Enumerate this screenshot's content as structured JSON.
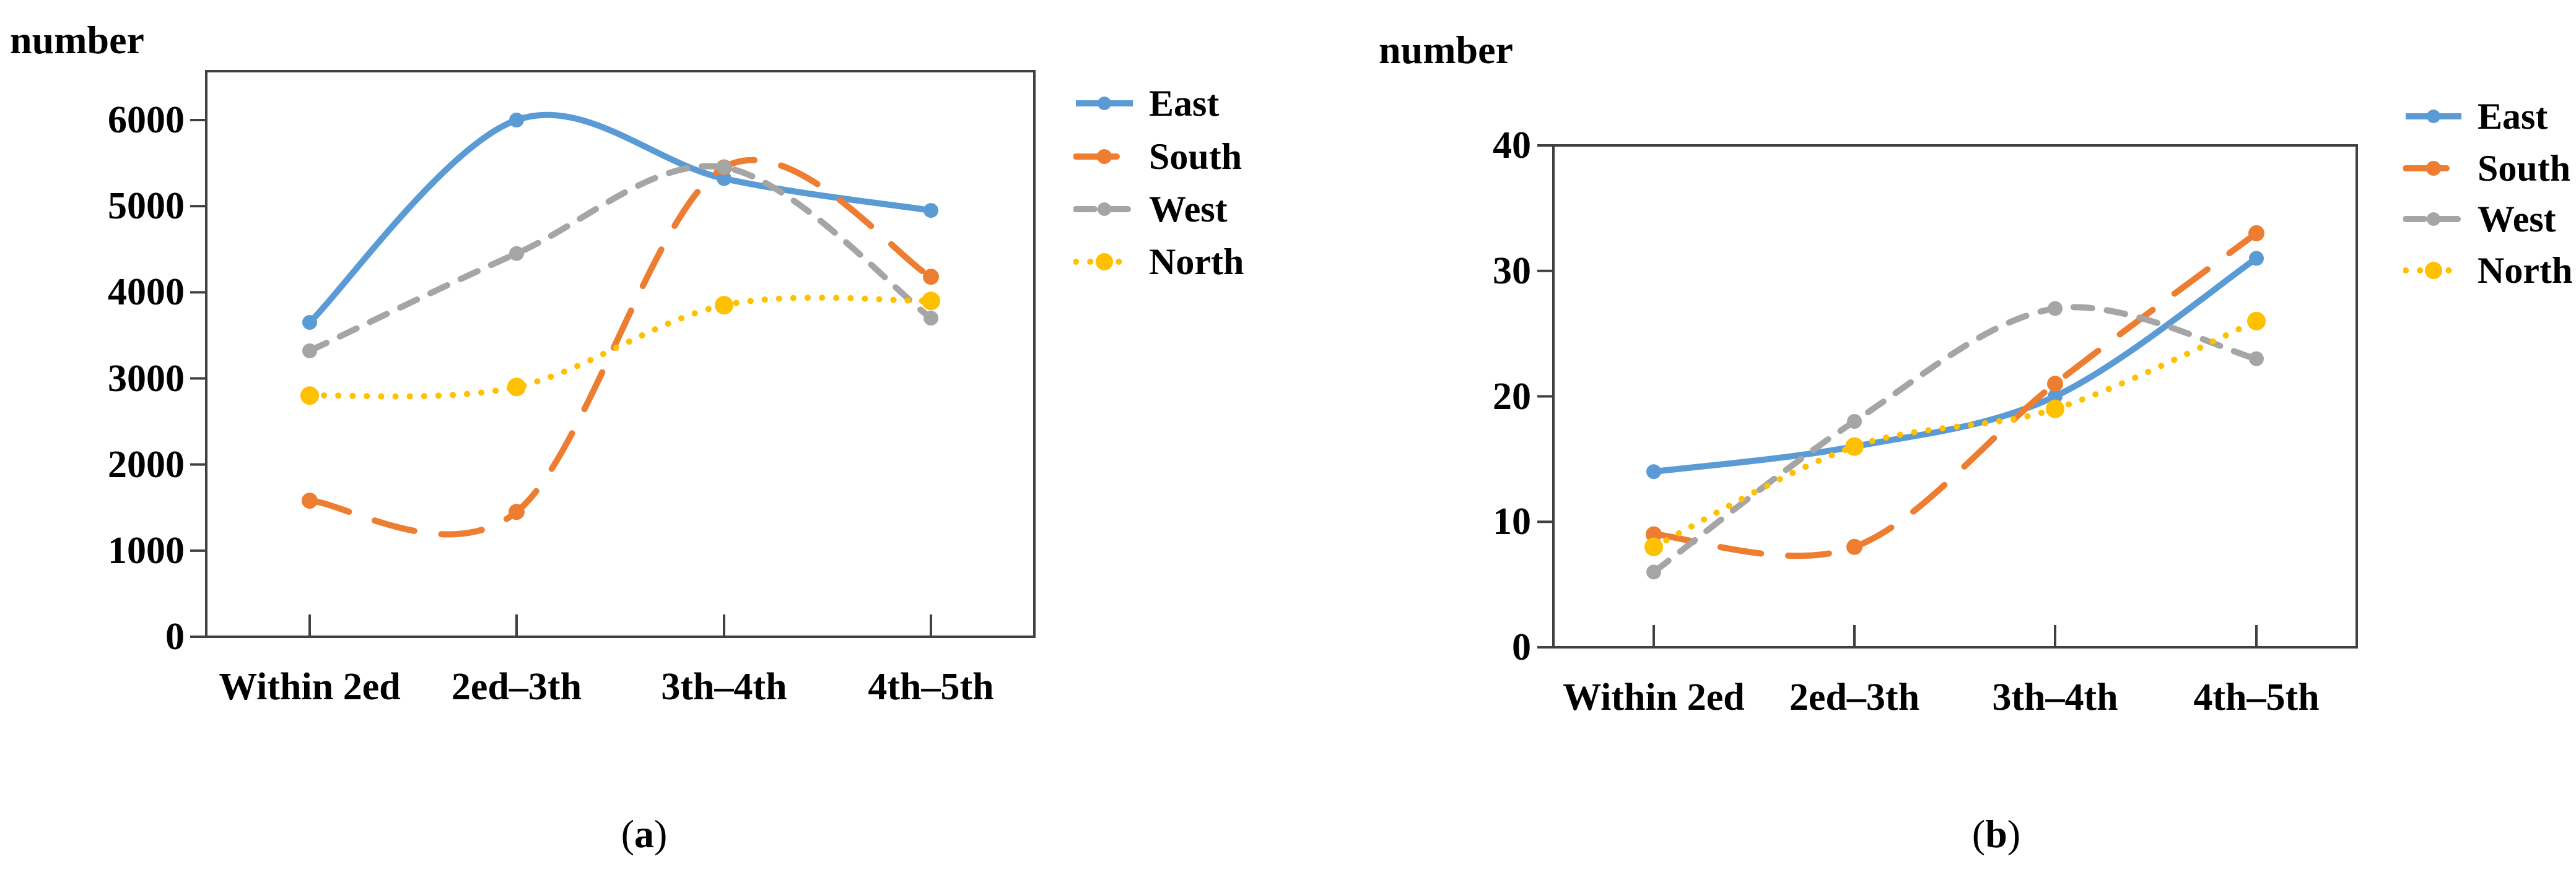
{
  "colors": {
    "east": "#5B9BD5",
    "south": "#ED7D31",
    "west": "#A5A5A5",
    "north": "#FFC000",
    "axis": "#404040",
    "text": "#000000"
  },
  "chart_data": [
    {
      "type": "line",
      "panel": "a",
      "ylabel": "number",
      "caption": {
        "open": "(",
        "label": "a",
        "close": ")"
      },
      "categories": [
        "Within 2ed",
        "2ed–3th",
        "3th–4th",
        "4th–5th"
      ],
      "yticks": [
        0,
        1000,
        2000,
        3000,
        4000,
        5000,
        6000
      ],
      "ylim": [
        0,
        6570
      ],
      "grid": false,
      "legend_position": "right",
      "series": [
        {
          "name": "East",
          "color": "#5B9BD5",
          "dash": "solid",
          "values": [
            3650,
            6000,
            5320,
            4950
          ]
        },
        {
          "name": "South",
          "color": "#ED7D31",
          "dash": "long-dash",
          "values": [
            1580,
            1450,
            5450,
            4180
          ]
        },
        {
          "name": "West",
          "color": "#A5A5A5",
          "dash": "dash",
          "values": [
            3320,
            4450,
            5450,
            3700
          ]
        },
        {
          "name": "North",
          "color": "#FFC000",
          "dash": "dot",
          "values": [
            2800,
            2900,
            3850,
            3900
          ]
        }
      ]
    },
    {
      "type": "line",
      "panel": "b",
      "ylabel": "number",
      "caption": {
        "open": "(",
        "label": "b",
        "close": ")"
      },
      "categories": [
        "Within 2ed",
        "2ed–3th",
        "3th–4th",
        "4th–5th"
      ],
      "yticks": [
        0,
        10,
        20,
        30,
        40
      ],
      "ylim": [
        0,
        40
      ],
      "grid": false,
      "legend_position": "right",
      "series": [
        {
          "name": "East",
          "color": "#5B9BD5",
          "dash": "solid",
          "values": [
            14,
            16,
            20,
            31
          ]
        },
        {
          "name": "South",
          "color": "#ED7D31",
          "dash": "long-dash",
          "values": [
            9,
            8,
            21,
            33
          ]
        },
        {
          "name": "West",
          "color": "#A5A5A5",
          "dash": "dash",
          "values": [
            6,
            18,
            27,
            23
          ]
        },
        {
          "name": "North",
          "color": "#FFC000",
          "dash": "dot",
          "values": [
            8,
            16,
            19,
            26
          ]
        }
      ]
    }
  ]
}
